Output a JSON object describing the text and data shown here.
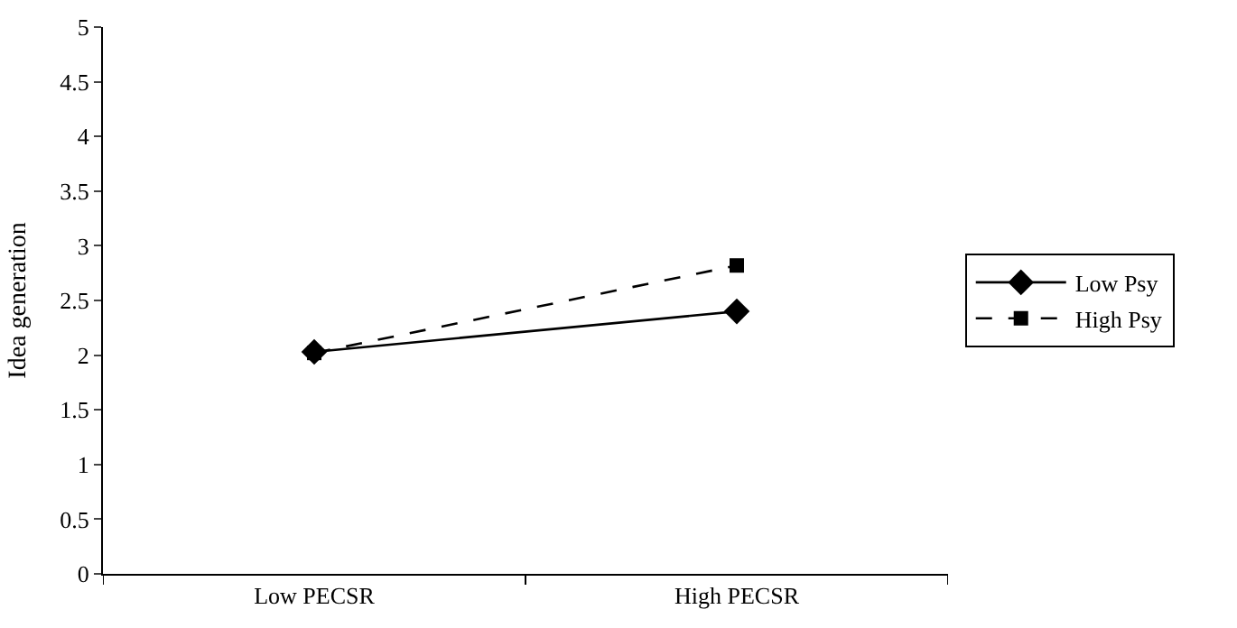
{
  "chart_data": {
    "type": "line",
    "ylabel": "Idea generation",
    "categories": [
      "Low PECSR",
      "High PECSR"
    ],
    "series": [
      {
        "name": "Low Psy",
        "color": "#000000",
        "values": [
          2.03,
          2.4
        ],
        "marker": "diamond",
        "line_style": "solid"
      },
      {
        "name": "High Psy",
        "color": "#000000",
        "values": [
          2.02,
          2.82
        ],
        "marker": "square",
        "line_style": "dashed"
      }
    ],
    "ylim": [
      0,
      5
    ],
    "yticks": [
      0,
      0.5,
      1,
      1.5,
      2,
      2.5,
      3,
      3.5,
      4,
      4.5,
      5
    ],
    "grid": false,
    "legend": "right"
  }
}
